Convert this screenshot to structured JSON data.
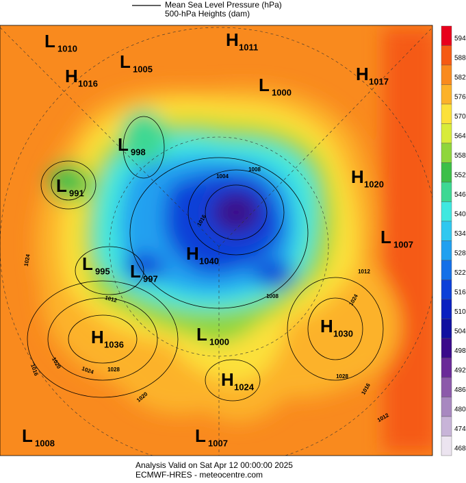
{
  "legend": {
    "line1": "Mean Sea Level Pressure (hPa)",
    "line2": "500-hPa Heights (dam)"
  },
  "centers": [
    {
      "letter": "L",
      "value": "1010"
    },
    {
      "letter": "H",
      "value": "1011"
    },
    {
      "letter": "L",
      "value": "1005"
    },
    {
      "letter": "H",
      "value": "1016"
    },
    {
      "letter": "L",
      "value": "1000"
    },
    {
      "letter": "H",
      "value": "1017"
    },
    {
      "letter": "L",
      "value": "998"
    },
    {
      "letter": "L",
      "value": "991"
    },
    {
      "letter": "H",
      "value": "1020"
    },
    {
      "letter": "L",
      "value": "1007"
    },
    {
      "letter": "H",
      "value": "1040"
    },
    {
      "letter": "L",
      "value": "995"
    },
    {
      "letter": "L",
      "value": "997"
    },
    {
      "letter": "H",
      "value": "1030"
    },
    {
      "letter": "H",
      "value": "1036"
    },
    {
      "letter": "L",
      "value": "1000"
    },
    {
      "letter": "H",
      "value": "1024"
    },
    {
      "letter": "L",
      "value": "1008"
    },
    {
      "letter": "L",
      "value": "1007"
    }
  ],
  "contour_labels": [
    "1008",
    "1004",
    "1016",
    "1024",
    "1012",
    "1012",
    "1024",
    "1008",
    "1016",
    "1020",
    "1024",
    "1028",
    "1020",
    "1028",
    "1016",
    "1012"
  ],
  "colorbar": {
    "ticks": [
      594,
      588,
      582,
      576,
      570,
      564,
      558,
      552,
      546,
      540,
      534,
      528,
      522,
      516,
      510,
      504,
      498,
      492,
      486,
      480,
      474,
      468
    ],
    "colors": [
      "#e8001c",
      "#f55a14",
      "#f98a1e",
      "#fcb22a",
      "#fce13a",
      "#d8ec3a",
      "#8fd63c",
      "#3cbf48",
      "#3dd893",
      "#3fe8e0",
      "#30c8f0",
      "#20a0f0",
      "#1470e8",
      "#0c40d8",
      "#0a20c0",
      "#1010a0",
      "#3a0a8a",
      "#6a2a98",
      "#8c5aaa",
      "#a888c0",
      "#c8b4d8",
      "#ece4f0"
    ]
  },
  "footer": {
    "line1": "Analysis Valid on Sat Apr 12 00:00:00 2025",
    "line2": "ECMWF-HRES - meteocentre.com"
  }
}
